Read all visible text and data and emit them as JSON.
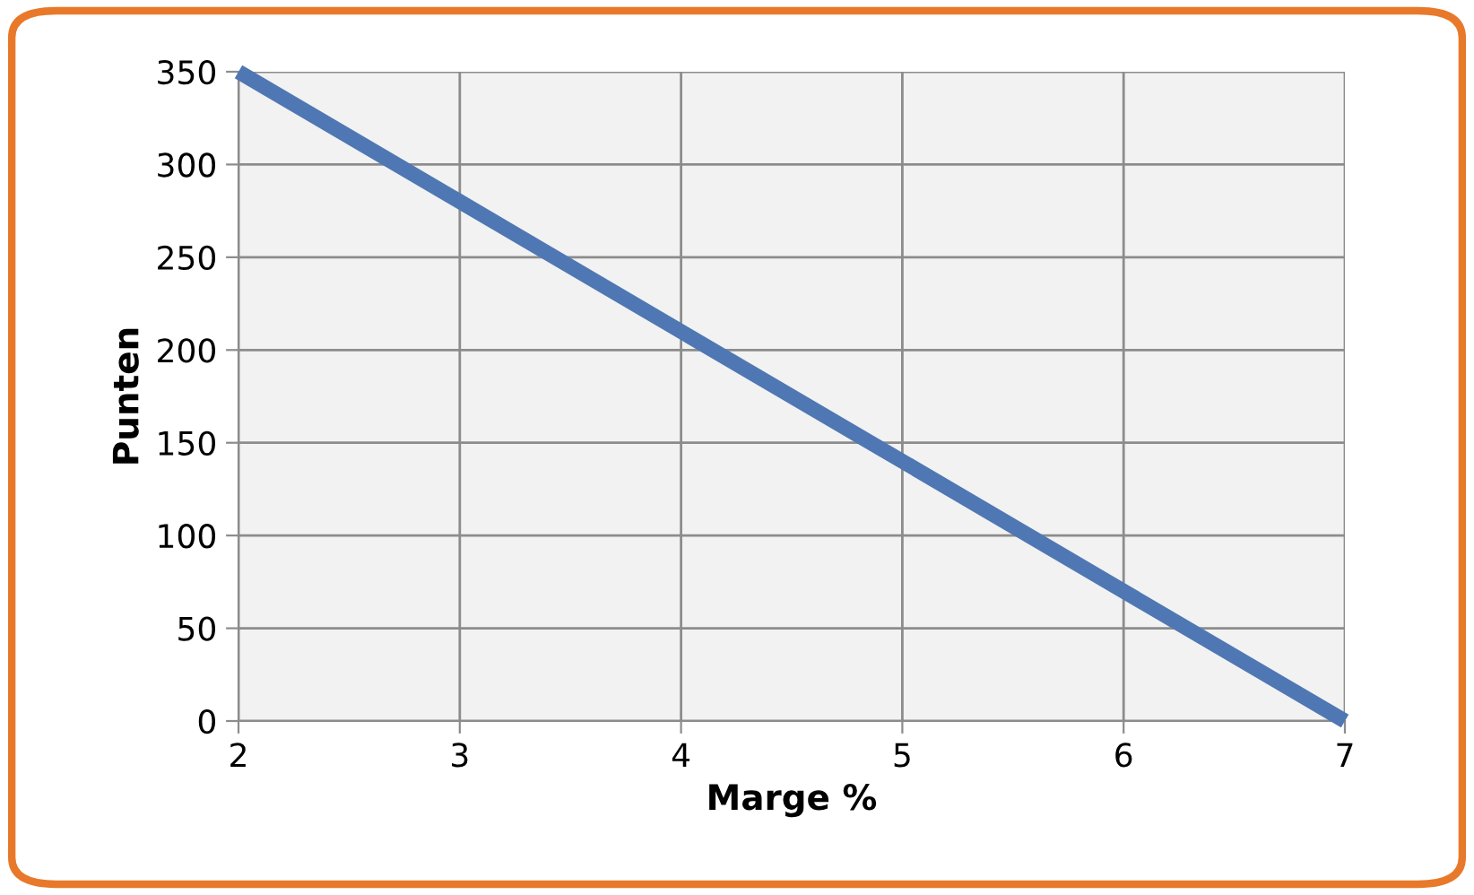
{
  "chart_data": {
    "type": "line",
    "xlabel": "Marge %",
    "ylabel": "Punten",
    "x": [
      2,
      3,
      4,
      5,
      6,
      7
    ],
    "series": [
      {
        "color": "#4f77b3",
        "values": [
          350,
          280,
          210,
          140,
          70,
          0
        ]
      }
    ],
    "xlim": [
      2,
      7
    ],
    "xticks": [
      2,
      3,
      4,
      5,
      6,
      7
    ],
    "ylim": [
      0,
      350
    ],
    "yticks": [
      0,
      50,
      100,
      150,
      200,
      250,
      300,
      350
    ],
    "grid": true,
    "marker": "none",
    "line_style": "solid",
    "legend": false
  }
}
